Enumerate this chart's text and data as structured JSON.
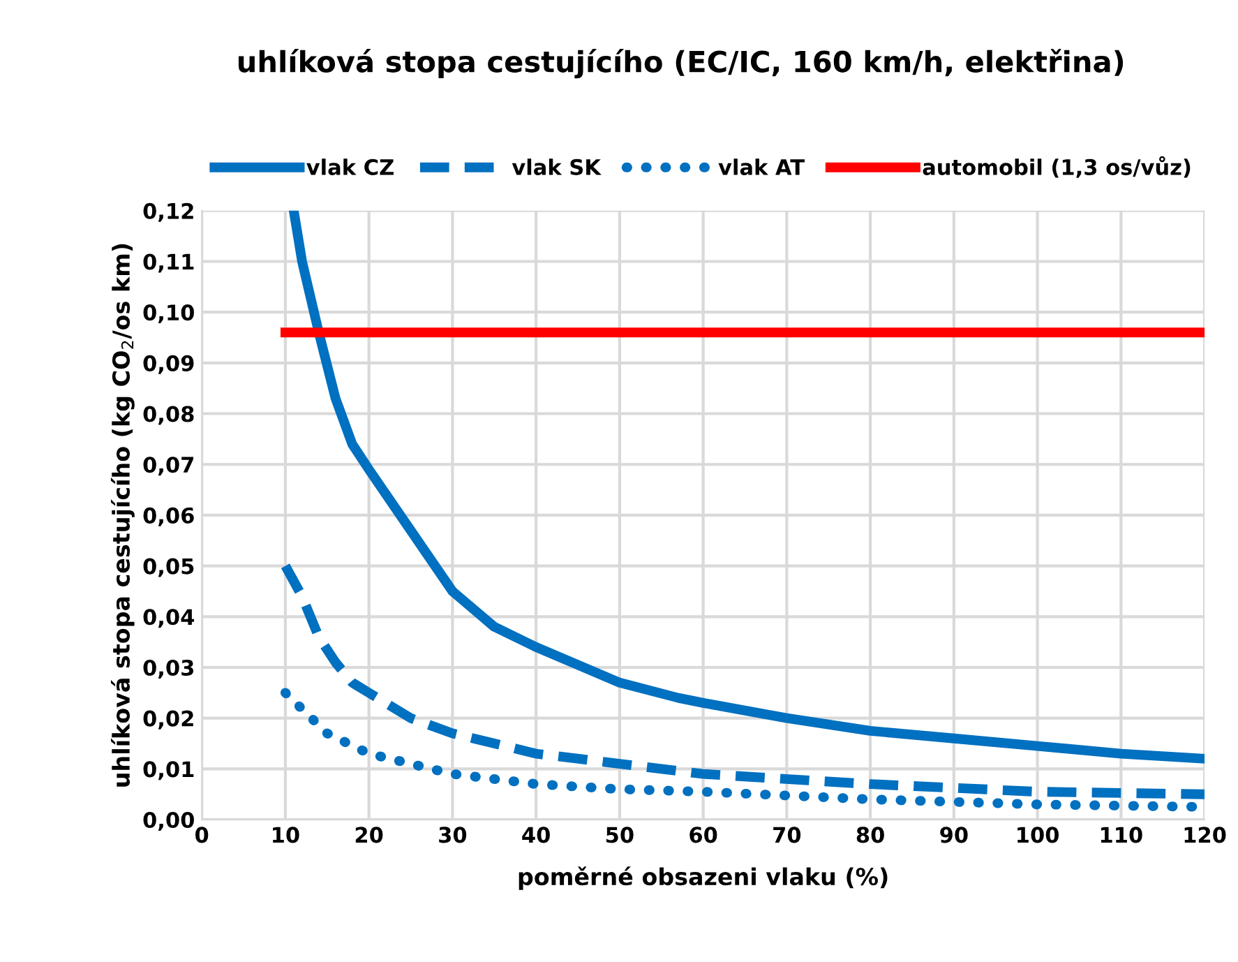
{
  "chart_data": {
    "type": "line",
    "title": "uhlíková stopa cestujícího (EC/IC, 160 km/h, elektřina)",
    "xlabel": "poměrné obsazeni vlaku (%)",
    "ylabel": "uhlíková stopa cestujícího (kg CO$_{2}$/os km)",
    "series": [
      {
        "name": "vlak CZ",
        "color": "#0070c0",
        "line_style": "solid",
        "x": [
          11,
          12,
          14,
          16,
          18,
          20,
          25,
          30,
          35,
          40,
          50,
          57,
          60,
          70,
          80,
          90,
          100,
          110,
          120
        ],
        "values": [
          0.12,
          0.11,
          0.096,
          0.083,
          0.074,
          0.069,
          0.057,
          0.045,
          0.038,
          0.034,
          0.027,
          0.024,
          0.023,
          0.02,
          0.0175,
          0.016,
          0.0145,
          0.013,
          0.012
        ]
      },
      {
        "name": "vlak SK",
        "color": "#0070c0",
        "line_style": "dashed",
        "x": [
          10,
          12,
          14,
          16,
          18,
          20,
          25,
          30,
          40,
          50,
          60,
          80,
          100,
          120
        ],
        "values": [
          0.05,
          0.044,
          0.036,
          0.031,
          0.027,
          0.025,
          0.02,
          0.017,
          0.013,
          0.011,
          0.009,
          0.007,
          0.0055,
          0.005
        ]
      },
      {
        "name": "vlak AT",
        "color": "#0070c0",
        "line_style": "dotted",
        "x": [
          10,
          15,
          20,
          30,
          40,
          50,
          60,
          80,
          100,
          120
        ],
        "values": [
          0.025,
          0.017,
          0.013,
          0.009,
          0.007,
          0.006,
          0.0055,
          0.004,
          0.003,
          0.0025
        ]
      },
      {
        "name": "automobil (1,3 os/vůz)",
        "color": "#ff0000",
        "line_style": "solid",
        "x": [
          10,
          120
        ],
        "values": [
          0.096,
          0.096
        ]
      }
    ],
    "xlim": [
      0,
      120
    ],
    "xticks": [
      0,
      10,
      20,
      30,
      40,
      50,
      60,
      70,
      80,
      90,
      100,
      110,
      120
    ],
    "ylim": [
      0,
      0.12
    ],
    "yticks": [
      {
        "value": 0,
        "label": "0,00"
      },
      {
        "value": 0.01,
        "label": "0,01"
      },
      {
        "value": 0.02,
        "label": "0,02"
      },
      {
        "value": 0.03,
        "label": "0,03"
      },
      {
        "value": 0.04,
        "label": "0,04"
      },
      {
        "value": 0.05,
        "label": "0,05"
      },
      {
        "value": 0.06,
        "label": "0,06"
      },
      {
        "value": 0.07,
        "label": "0,07"
      },
      {
        "value": 0.08,
        "label": "0,08"
      },
      {
        "value": 0.09,
        "label": "0,09"
      },
      {
        "value": 0.1,
        "label": "0,10"
      },
      {
        "value": 0.11,
        "label": "0,11"
      },
      {
        "value": 0.12,
        "label": "0,12"
      }
    ],
    "grid": true,
    "legend": "top"
  }
}
